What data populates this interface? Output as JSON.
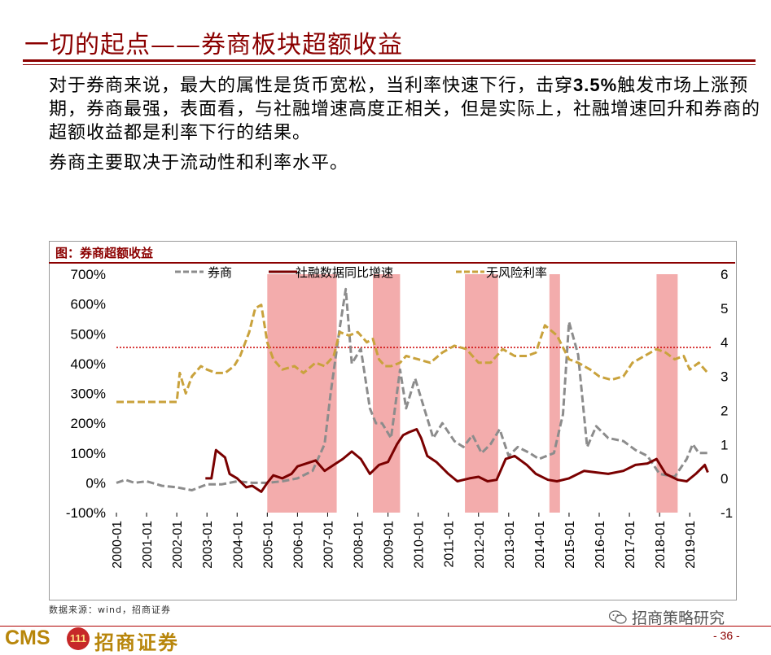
{
  "slide": {
    "title": "一切的起点——券商板块超额收益",
    "page_number": "- 36 -"
  },
  "body": {
    "paragraph_1_part1": "对于券商来说，最大的属性是货币宽松，当利率快速下行，击穿",
    "paragraph_1_bold": "3.5%",
    "paragraph_1_part2": "触发市场上涨预期，券商最强，表面看，与社融增速高度正相关，但是实际上，社融增速回升和券商的超额收益都是利率下行的结果。",
    "paragraph_2": "券商主要取决于流动性和利率水平。"
  },
  "chart_data": {
    "type": "line",
    "title": "图：券商超额收益",
    "left_axis": {
      "ticks": [
        "-100%",
        "0%",
        "100%",
        "200%",
        "300%",
        "400%",
        "500%",
        "600%",
        "700%"
      ],
      "range": [
        -100,
        700
      ]
    },
    "right_axis": {
      "ticks": [
        "-1",
        "0",
        "1",
        "2",
        "3",
        "4",
        "5",
        "6"
      ],
      "range": [
        -1,
        6
      ]
    },
    "x_ticks": [
      "2000-01",
      "2001-01",
      "2002-01",
      "2003-01",
      "2004-01",
      "2005-01",
      "2006-01",
      "2007-01",
      "2008-01",
      "2009-01",
      "2010-01",
      "2011-01",
      "2012-01",
      "2013-01",
      "2014-01",
      "2015-01",
      "2016-01",
      "2017-01",
      "2018-01",
      "2019-01"
    ],
    "reference_line": {
      "axis": "right",
      "value": 3.85,
      "color": "#cc0000",
      "style": "dotted"
    },
    "shaded_periods": [
      {
        "start": 2005.0,
        "end": 2007.3
      },
      {
        "start": 2008.5,
        "end": 2009.4
      },
      {
        "start": 2011.55,
        "end": 2012.65
      },
      {
        "start": 2014.35,
        "end": 2014.7
      },
      {
        "start": 2017.9,
        "end": 2018.6
      }
    ],
    "shade_color": "#f2a3a3",
    "series": [
      {
        "name": "券商",
        "axis": "left",
        "color": "#8c8c8c",
        "style": "dashed",
        "points": [
          [
            2000.0,
            0
          ],
          [
            2000.3,
            10
          ],
          [
            2000.6,
            0
          ],
          [
            2001.0,
            5
          ],
          [
            2001.5,
            -10
          ],
          [
            2002.0,
            -15
          ],
          [
            2002.5,
            -25
          ],
          [
            2003.0,
            -5
          ],
          [
            2003.5,
            -5
          ],
          [
            2004.0,
            5
          ],
          [
            2004.5,
            0
          ],
          [
            2005.0,
            0
          ],
          [
            2005.5,
            5
          ],
          [
            2006.0,
            15
          ],
          [
            2006.5,
            40
          ],
          [
            2006.9,
            130
          ],
          [
            2007.1,
            300
          ],
          [
            2007.4,
            520
          ],
          [
            2007.6,
            650
          ],
          [
            2007.8,
            400
          ],
          [
            2008.1,
            450
          ],
          [
            2008.4,
            250
          ],
          [
            2008.6,
            200
          ],
          [
            2008.8,
            200
          ],
          [
            2009.1,
            150
          ],
          [
            2009.4,
            380
          ],
          [
            2009.6,
            250
          ],
          [
            2009.9,
            350
          ],
          [
            2010.2,
            250
          ],
          [
            2010.5,
            150
          ],
          [
            2010.8,
            200
          ],
          [
            2011.2,
            140
          ],
          [
            2011.5,
            120
          ],
          [
            2011.8,
            160
          ],
          [
            2012.1,
            100
          ],
          [
            2012.4,
            130
          ],
          [
            2012.7,
            180
          ],
          [
            2013.0,
            90
          ],
          [
            2013.3,
            120
          ],
          [
            2013.7,
            100
          ],
          [
            2014.0,
            80
          ],
          [
            2014.5,
            100
          ],
          [
            2014.8,
            230
          ],
          [
            2015.0,
            540
          ],
          [
            2015.3,
            430
          ],
          [
            2015.6,
            120
          ],
          [
            2015.9,
            190
          ],
          [
            2016.3,
            150
          ],
          [
            2016.8,
            140
          ],
          [
            2017.2,
            110
          ],
          [
            2017.6,
            90
          ],
          [
            2018.0,
            30
          ],
          [
            2018.5,
            20
          ],
          [
            2018.9,
            80
          ],
          [
            2019.1,
            130
          ],
          [
            2019.3,
            100
          ],
          [
            2019.6,
            100
          ]
        ]
      },
      {
        "name": "社融数据同比增速",
        "axis": "left",
        "color": "#7a0000",
        "style": "solid",
        "points": [
          [
            2002.95,
            15
          ],
          [
            2003.15,
            15
          ],
          [
            2003.3,
            110
          ],
          [
            2003.6,
            85
          ],
          [
            2003.75,
            30
          ],
          [
            2004.0,
            15
          ],
          [
            2004.3,
            -15
          ],
          [
            2004.5,
            -10
          ],
          [
            2004.8,
            -30
          ],
          [
            2005.0,
            0
          ],
          [
            2005.2,
            25
          ],
          [
            2005.5,
            15
          ],
          [
            2005.8,
            30
          ],
          [
            2006.0,
            55
          ],
          [
            2006.3,
            65
          ],
          [
            2006.6,
            75
          ],
          [
            2006.9,
            40
          ],
          [
            2007.2,
            60
          ],
          [
            2007.5,
            80
          ],
          [
            2007.8,
            105
          ],
          [
            2008.1,
            80
          ],
          [
            2008.4,
            30
          ],
          [
            2008.7,
            60
          ],
          [
            2009.0,
            70
          ],
          [
            2009.3,
            130
          ],
          [
            2009.5,
            160
          ],
          [
            2009.7,
            170
          ],
          [
            2009.95,
            180
          ],
          [
            2010.1,
            150
          ],
          [
            2010.3,
            90
          ],
          [
            2010.6,
            70
          ],
          [
            2011.0,
            30
          ],
          [
            2011.3,
            5
          ],
          [
            2011.7,
            15
          ],
          [
            2012.0,
            20
          ],
          [
            2012.3,
            5
          ],
          [
            2012.6,
            10
          ],
          [
            2012.9,
            80
          ],
          [
            2013.2,
            90
          ],
          [
            2013.6,
            60
          ],
          [
            2013.9,
            30
          ],
          [
            2014.3,
            10
          ],
          [
            2014.6,
            5
          ],
          [
            2015.0,
            15
          ],
          [
            2015.5,
            40
          ],
          [
            2015.9,
            35
          ],
          [
            2016.3,
            30
          ],
          [
            2016.8,
            40
          ],
          [
            2017.2,
            60
          ],
          [
            2017.6,
            65
          ],
          [
            2017.9,
            80
          ],
          [
            2018.2,
            30
          ],
          [
            2018.6,
            10
          ],
          [
            2018.9,
            5
          ],
          [
            2019.2,
            30
          ],
          [
            2019.5,
            60
          ],
          [
            2019.6,
            35
          ]
        ]
      },
      {
        "name": "无风险利率",
        "axis": "right",
        "color": "#c9a23c",
        "style": "dashed",
        "points": [
          [
            2000.0,
            2.25
          ],
          [
            2001.2,
            2.25
          ],
          [
            2002.0,
            2.25
          ],
          [
            2002.1,
            3.1
          ],
          [
            2002.3,
            2.5
          ],
          [
            2002.5,
            3.0
          ],
          [
            2002.8,
            3.3
          ],
          [
            2003.0,
            3.2
          ],
          [
            2003.3,
            3.1
          ],
          [
            2003.6,
            3.1
          ],
          [
            2003.9,
            3.3
          ],
          [
            2004.1,
            3.6
          ],
          [
            2004.4,
            4.3
          ],
          [
            2004.6,
            5.0
          ],
          [
            2004.8,
            5.1
          ],
          [
            2005.0,
            4.0
          ],
          [
            2005.2,
            3.5
          ],
          [
            2005.5,
            3.2
          ],
          [
            2005.9,
            3.3
          ],
          [
            2006.2,
            3.1
          ],
          [
            2006.6,
            3.4
          ],
          [
            2006.9,
            3.3
          ],
          [
            2007.2,
            3.6
          ],
          [
            2007.4,
            4.3
          ],
          [
            2007.7,
            4.2
          ],
          [
            2008.0,
            4.3
          ],
          [
            2008.3,
            4.0
          ],
          [
            2008.5,
            4.1
          ],
          [
            2008.7,
            3.5
          ],
          [
            2008.9,
            3.3
          ],
          [
            2009.1,
            3.3
          ],
          [
            2009.4,
            3.4
          ],
          [
            2009.6,
            3.6
          ],
          [
            2010.0,
            3.5
          ],
          [
            2010.4,
            3.4
          ],
          [
            2010.8,
            3.7
          ],
          [
            2011.2,
            3.9
          ],
          [
            2011.6,
            3.8
          ],
          [
            2012.0,
            3.4
          ],
          [
            2012.4,
            3.4
          ],
          [
            2012.8,
            3.8
          ],
          [
            2013.2,
            3.6
          ],
          [
            2013.6,
            3.6
          ],
          [
            2013.9,
            3.7
          ],
          [
            2014.2,
            4.5
          ],
          [
            2014.6,
            4.2
          ],
          [
            2015.0,
            3.5
          ],
          [
            2015.3,
            3.4
          ],
          [
            2015.7,
            3.2
          ],
          [
            2016.0,
            3.0
          ],
          [
            2016.4,
            2.9
          ],
          [
            2016.8,
            3.0
          ],
          [
            2017.1,
            3.4
          ],
          [
            2017.5,
            3.6
          ],
          [
            2017.9,
            3.8
          ],
          [
            2018.2,
            3.7
          ],
          [
            2018.5,
            3.5
          ],
          [
            2018.8,
            3.6
          ],
          [
            2019.0,
            3.2
          ],
          [
            2019.3,
            3.4
          ],
          [
            2019.6,
            3.1
          ]
        ]
      }
    ]
  },
  "footer": {
    "source": "数据来源：wind，招商证券",
    "brand_name": "招商策略研究",
    "wechat_icon": "wechat-icon",
    "logo_latin": "CMS",
    "logo_mark": "111",
    "logo_chinese": "招商证券"
  }
}
